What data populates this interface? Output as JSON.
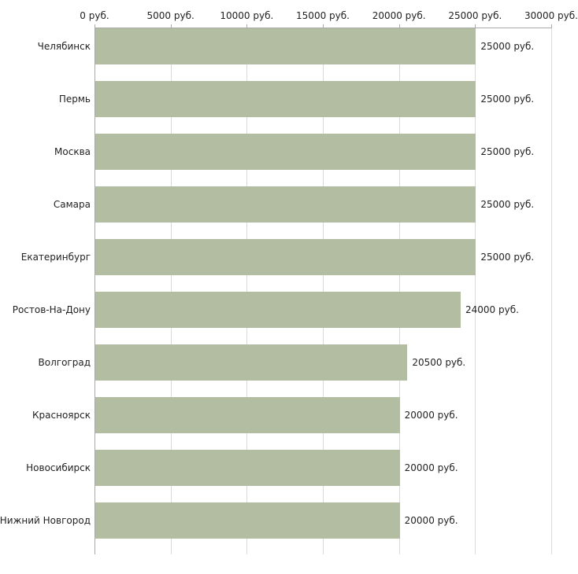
{
  "chart_data": {
    "type": "bar",
    "orientation": "horizontal",
    "title": "",
    "xlabel": "",
    "ylabel": "",
    "xlim": [
      0,
      30000
    ],
    "grid": true,
    "legend": false,
    "bar_color": "#b3bda1",
    "categories": [
      "Челябинск",
      "Пермь",
      "Москва",
      "Самара",
      "Екатеринбург",
      "Ростов-На-Дону",
      "Волгоград",
      "Красноярск",
      "Новосибирск",
      "Нижний Новгород"
    ],
    "values": [
      25000,
      25000,
      25000,
      25000,
      25000,
      24000,
      20500,
      20000,
      20000,
      20000
    ],
    "value_labels": [
      "25000 руб.",
      "25000 руб.",
      "25000 руб.",
      "25000 руб.",
      "25000 руб.",
      "24000 руб.",
      "20500 руб.",
      "20000 руб.",
      "20000 руб.",
      "20000 руб."
    ],
    "x_ticks": [
      0,
      5000,
      10000,
      15000,
      20000,
      25000,
      30000
    ],
    "x_tick_labels": [
      "0 руб.",
      "5000 руб.",
      "10000 руб.",
      "15000 руб.",
      "20000 руб.",
      "25000 руб.",
      "30000 руб."
    ]
  }
}
